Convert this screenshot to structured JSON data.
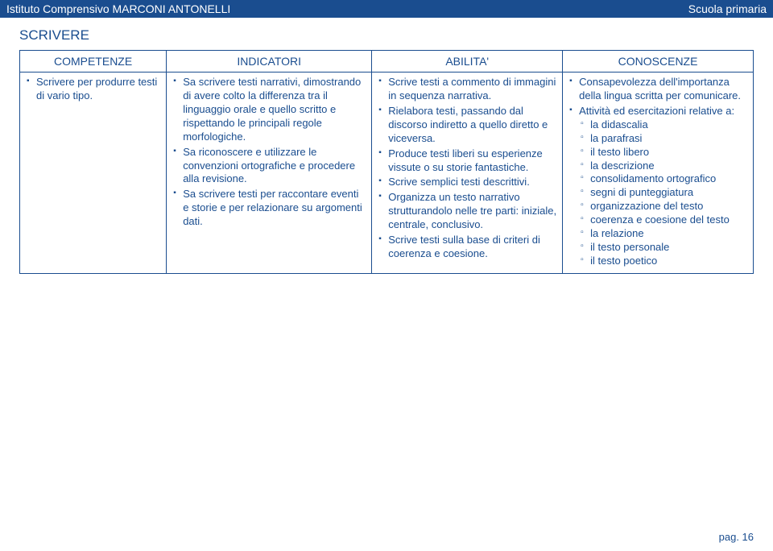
{
  "header": {
    "left": "Istituto Comprensivo MARCONI ANTONELLI",
    "right": "Scuola primaria"
  },
  "section_title": "SCRIVERE",
  "table": {
    "headers": [
      "COMPETENZE",
      "INDICATORI",
      "ABILITA'",
      "CONOSCENZE"
    ],
    "competenze": [
      "Scrivere per produrre testi di vario tipo."
    ],
    "indicatori": [
      "Sa scrivere testi narrativi, dimostrando di avere colto la differenza tra il linguaggio orale e quello scritto e rispettando le principali regole morfologiche.",
      "Sa riconoscere e utilizzare le convenzioni ortografiche e procedere alla revisione.",
      "Sa scrivere testi per raccontare eventi e storie e per relazionare su argomenti dati."
    ],
    "abilita": [
      "Scrive testi a commento di immagini in sequenza narrativa.",
      "Rielabora testi, passando dal discorso indiretto a quello diretto e viceversa.",
      "Produce testi liberi su esperienze vissute o su storie fantastiche.",
      "Scrive semplici testi descrittivi.",
      "Organizza un testo narrativo strutturandolo nelle tre parti: iniziale, centrale, conclusivo.",
      "Scrive testi sulla base di criteri di coerenza e coesione."
    ],
    "conoscenze": [
      "Consapevolezza dell'importanza della lingua scritta per comunicare.",
      "Attività ed esercitazioni relative a:"
    ],
    "conoscenze_sub": [
      "la didascalia",
      "la parafrasi",
      "il testo libero",
      "la descrizione",
      "consolidamento ortografico",
      "segni di punteggiatura",
      "organizzazione del testo",
      "coerenza e coesione del testo",
      "la relazione",
      "il testo personale",
      "il testo poetico"
    ]
  },
  "footer": "pag. 16"
}
